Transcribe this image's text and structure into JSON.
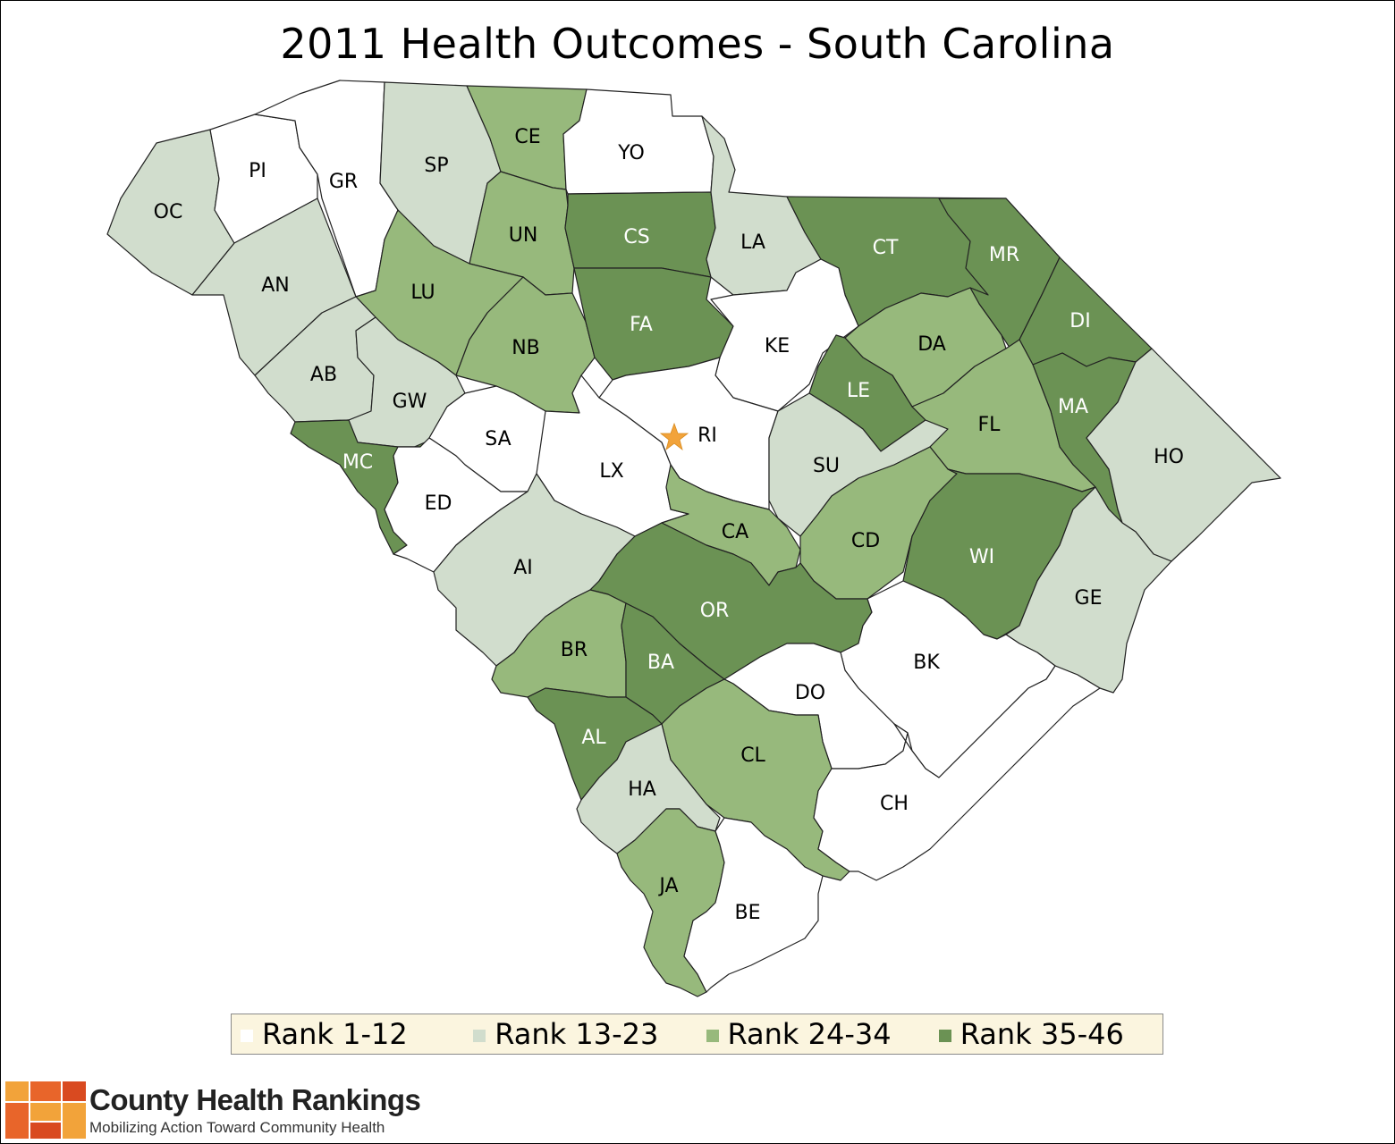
{
  "title": "2011 Health Outcomes - South Carolina",
  "colors": {
    "rank_1_12": "#ffffff",
    "rank_13_23": "#d1ddcd",
    "rank_24_34": "#97b97c",
    "rank_35_46": "#6b9254",
    "capital_star": "#f2a33a"
  },
  "counties": [
    {
      "code": "OC",
      "tier": 2
    },
    {
      "code": "PI",
      "tier": 1
    },
    {
      "code": "GR",
      "tier": 1
    },
    {
      "code": "SP",
      "tier": 2
    },
    {
      "code": "CE",
      "tier": 3
    },
    {
      "code": "YO",
      "tier": 1
    },
    {
      "code": "UN",
      "tier": 3
    },
    {
      "code": "CS",
      "tier": 4
    },
    {
      "code": "LA",
      "tier": 2
    },
    {
      "code": "CT",
      "tier": 4
    },
    {
      "code": "MR",
      "tier": 4
    },
    {
      "code": "AN",
      "tier": 2
    },
    {
      "code": "LU",
      "tier": 3
    },
    {
      "code": "NB",
      "tier": 3
    },
    {
      "code": "FA",
      "tier": 4
    },
    {
      "code": "KE",
      "tier": 1
    },
    {
      "code": "DA",
      "tier": 3
    },
    {
      "code": "DI",
      "tier": 4
    },
    {
      "code": "AB",
      "tier": 2
    },
    {
      "code": "GW",
      "tier": 2
    },
    {
      "code": "LE",
      "tier": 4
    },
    {
      "code": "SA",
      "tier": 1
    },
    {
      "code": "RI",
      "tier": 1
    },
    {
      "code": "MA",
      "tier": 4
    },
    {
      "code": "MC",
      "tier": 4
    },
    {
      "code": "LX",
      "tier": 1
    },
    {
      "code": "SU",
      "tier": 2
    },
    {
      "code": "FL",
      "tier": 3
    },
    {
      "code": "HO",
      "tier": 2
    },
    {
      "code": "ED",
      "tier": 1
    },
    {
      "code": "CA",
      "tier": 3
    },
    {
      "code": "CD",
      "tier": 3
    },
    {
      "code": "WI",
      "tier": 4
    },
    {
      "code": "AI",
      "tier": 2
    },
    {
      "code": "OR",
      "tier": 4
    },
    {
      "code": "GE",
      "tier": 2
    },
    {
      "code": "BR",
      "tier": 3
    },
    {
      "code": "BA",
      "tier": 4
    },
    {
      "code": "BK",
      "tier": 1
    },
    {
      "code": "DO",
      "tier": 1
    },
    {
      "code": "AL",
      "tier": 4
    },
    {
      "code": "CL",
      "tier": 3
    },
    {
      "code": "HA",
      "tier": 2
    },
    {
      "code": "CH",
      "tier": 1
    },
    {
      "code": "JA",
      "tier": 3
    },
    {
      "code": "BE",
      "tier": 1
    }
  ],
  "legend": [
    {
      "label": "Rank 1-12",
      "color": "#ffffff"
    },
    {
      "label": "Rank 13-23",
      "color": "#d1ddcd"
    },
    {
      "label": "Rank 24-34",
      "color": "#97b97c"
    },
    {
      "label": "Rank 35-46",
      "color": "#6b9254"
    }
  ],
  "brand": {
    "name": "County Health Rankings",
    "tagline": "Mobilizing Action Toward Community Health"
  }
}
